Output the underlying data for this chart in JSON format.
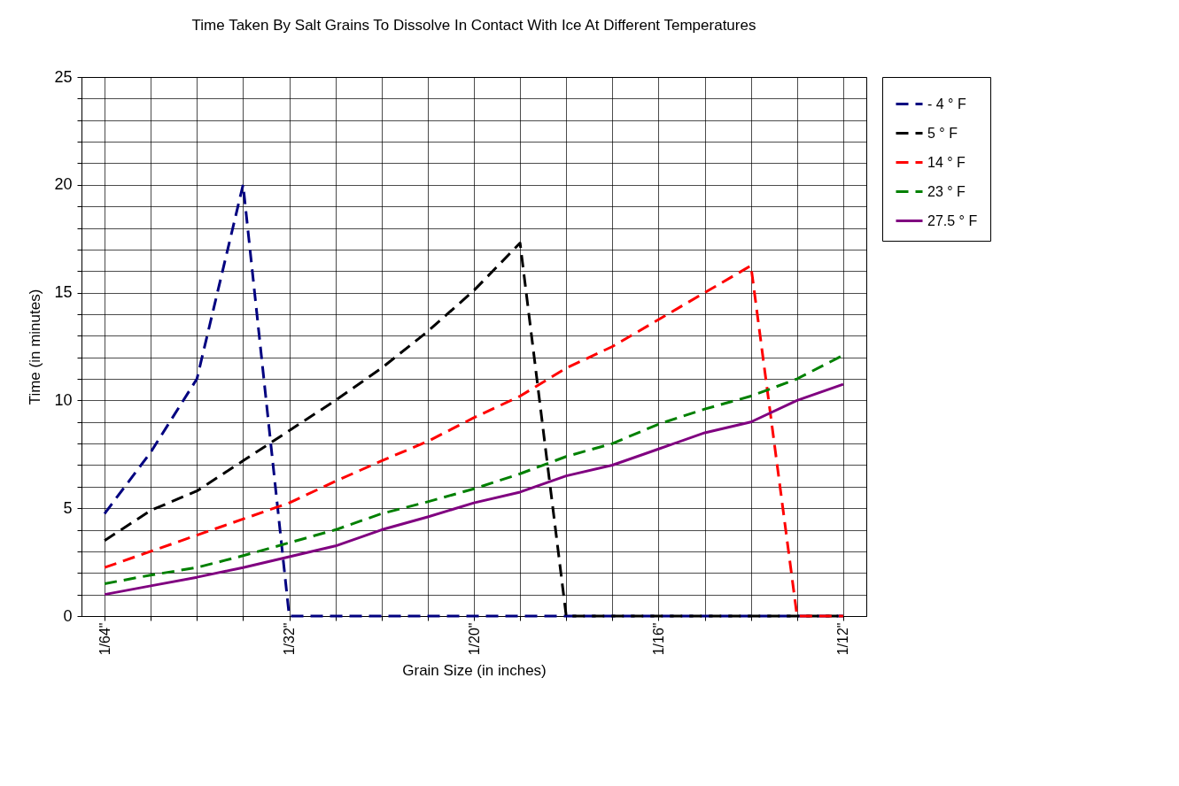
{
  "chart_data": {
    "type": "line",
    "title": "Time Taken By Salt Grains To Dissolve In Contact With Ice At Different Temperatures",
    "xlabel": "Grain Size (in inches)",
    "ylabel": "Time (in minutes)",
    "categories": [
      "1/64\"",
      null,
      null,
      null,
      "1/32\"",
      null,
      null,
      null,
      "1/20\"",
      null,
      null,
      null,
      "1/16\"",
      null,
      null,
      null,
      "1/12\""
    ],
    "ylim": [
      0,
      25
    ],
    "yticks": [
      0,
      {
        "value": 1,
        "label": null
      },
      {
        "value": 2,
        "label": null
      },
      {
        "value": 3,
        "label": null
      },
      {
        "value": 4,
        "label": null
      },
      5,
      {
        "value": 6,
        "label": null
      },
      {
        "value": 7,
        "label": null
      },
      {
        "value": 8,
        "label": null
      },
      {
        "value": 9,
        "label": null
      },
      10,
      {
        "value": 11,
        "label": null
      },
      {
        "value": 12,
        "label": null
      },
      {
        "value": 13,
        "label": null
      },
      {
        "value": 14,
        "label": null
      },
      15,
      {
        "value": 16,
        "label": null
      },
      {
        "value": 17,
        "label": null
      },
      {
        "value": 18,
        "label": null
      },
      {
        "value": 19,
        "label": null
      },
      20,
      {
        "value": 21,
        "label": null
      },
      {
        "value": 22,
        "label": null
      },
      {
        "value": 23,
        "label": null
      },
      {
        "value": 24,
        "label": null
      },
      25
    ],
    "grid": true,
    "legend": "right",
    "marker": "none",
    "series": [
      {
        "name": "- 4 ° F",
        "color": "#000080",
        "line_style": "dashed",
        "values": [
          4.75,
          7.6,
          11,
          20,
          0,
          0,
          0,
          0,
          0,
          0,
          0,
          0,
          0,
          0,
          0,
          0,
          0
        ]
      },
      {
        "name": "5 ° F",
        "color": "#000000",
        "line_style": "dashed",
        "values": [
          3.5,
          4.9,
          5.8,
          7.2,
          8.6,
          10,
          11.5,
          13.2,
          15.1,
          17.3,
          0,
          0,
          0,
          0,
          0,
          0,
          0
        ]
      },
      {
        "name": "14 ° F",
        "color": "#ff0000",
        "line_style": "dashed",
        "values": [
          2.25,
          3,
          3.75,
          4.5,
          5.25,
          6.25,
          7.2,
          8.1,
          9.2,
          10.2,
          11.5,
          12.5,
          13.75,
          15,
          16.25,
          0,
          0
        ]
      },
      {
        "name": "23 ° F",
        "color": "#008000",
        "line_style": "dashed",
        "values": [
          1.5,
          1.9,
          2.25,
          2.8,
          3.4,
          4,
          4.75,
          5.3,
          5.9,
          6.6,
          7.4,
          8,
          8.9,
          9.6,
          10.2,
          11,
          12.1
        ]
      },
      {
        "name": "27.5 ° F",
        "color": "#800080",
        "line_style": "solid",
        "values": [
          1,
          1.4,
          1.8,
          2.25,
          2.75,
          3.25,
          4,
          4.6,
          5.25,
          5.75,
          6.5,
          7,
          7.75,
          8.5,
          9,
          10,
          10.75
        ]
      }
    ]
  }
}
